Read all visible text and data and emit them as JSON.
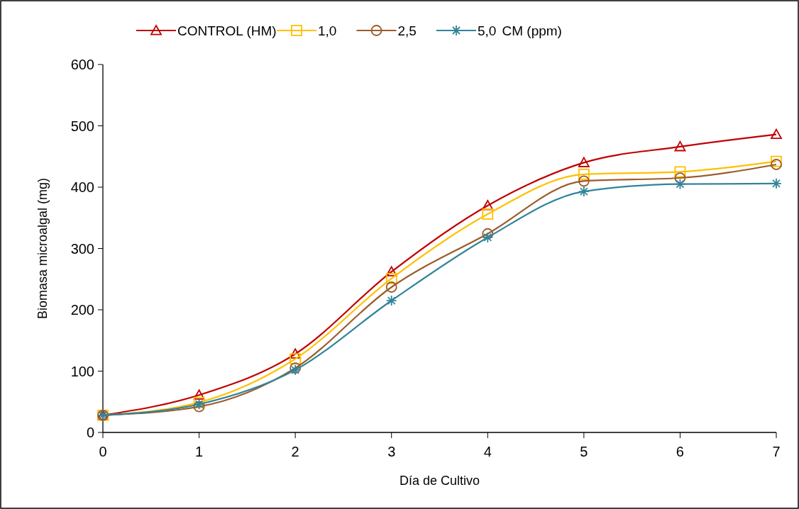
{
  "chart_data": {
    "type": "line",
    "xlabel": "Día de Cultivo",
    "ylabel": "Biomasa microalgal (mg)",
    "legend_title": "CM (ppm)",
    "legend": "top",
    "x": [
      0,
      1,
      2,
      3,
      4,
      5,
      6,
      7
    ],
    "xlim": [
      0,
      7
    ],
    "xticks": [
      0,
      1,
      2,
      3,
      4,
      5,
      6,
      7
    ],
    "ylim": [
      0,
      600
    ],
    "yticks": [
      0,
      100,
      200,
      300,
      400,
      500,
      600
    ],
    "grid": false,
    "series": [
      {
        "name": "CONTROL (HM)",
        "color": "#c00000",
        "marker": "triangle",
        "values": [
          28,
          61,
          128,
          262,
          370,
          440,
          466,
          486
        ]
      },
      {
        "name": "1,0",
        "color": "#ffc000",
        "marker": "square",
        "values": [
          28,
          49,
          120,
          251,
          356,
          421,
          425,
          442
        ]
      },
      {
        "name": "2,5",
        "color": "#9c5b2a",
        "marker": "circle",
        "values": [
          28,
          42,
          105,
          237,
          324,
          410,
          415,
          437
        ]
      },
      {
        "name": "5,0",
        "color": "#31849b",
        "marker": "cross",
        "values": [
          28,
          46,
          102,
          215,
          318,
          393,
          405,
          406
        ]
      }
    ]
  }
}
